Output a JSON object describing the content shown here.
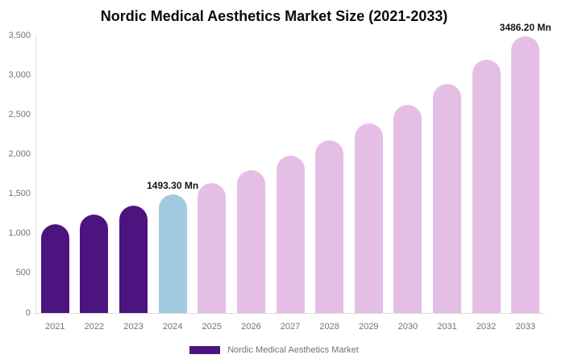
{
  "title": "Nordic Medical Aesthetics Market Size (2021-2033)",
  "colors": {
    "historical_bar": "#4d1480",
    "current_bar": "#a2cbe0",
    "forecast_bar": "#e5bee6",
    "axis_line": "#dcdcdc",
    "axis_text": "#737373",
    "title_text": "#0b0b0b"
  },
  "chart_data": {
    "type": "bar",
    "title": "Nordic Medical Aesthetics Market Size (2021-2033)",
    "xlabel": "",
    "ylabel": "",
    "categories": [
      "2021",
      "2022",
      "2023",
      "2024",
      "2025",
      "2026",
      "2027",
      "2028",
      "2029",
      "2030",
      "2031",
      "2032",
      "2033"
    ],
    "values": [
      1115,
      1240,
      1350,
      1493.3,
      1640,
      1805,
      1980,
      2175,
      2390,
      2630,
      2890,
      3190,
      3486.2
    ],
    "values_unit": "Mn",
    "bar_colors": [
      "#4d1480",
      "#4d1480",
      "#4d1480",
      "#a2cbe0",
      "#e5bee6",
      "#e5bee6",
      "#e5bee6",
      "#e5bee6",
      "#e5bee6",
      "#e5bee6",
      "#e5bee6",
      "#e5bee6",
      "#e5bee6"
    ],
    "ylim": [
      0,
      3500
    ],
    "yticks": [
      {
        "value": 0,
        "label": "0"
      },
      {
        "value": 500,
        "label": "500"
      },
      {
        "value": 1000,
        "label": "1,000"
      },
      {
        "value": 1500,
        "label": "1,500"
      },
      {
        "value": 2000,
        "label": "2,000"
      },
      {
        "value": 2500,
        "label": "2,500"
      },
      {
        "value": 3000,
        "label": "3,000"
      },
      {
        "value": 3500,
        "label": "3,500"
      }
    ],
    "grid": false,
    "annotations": [
      {
        "category": "2024",
        "text": "1493.30 Mn"
      },
      {
        "category": "2033",
        "text": "3486.20 Mn"
      }
    ],
    "legend": [
      {
        "label": "Nordic Medical Aesthetics Market",
        "color": "#4d1480"
      }
    ],
    "legend_position": "bottom"
  }
}
